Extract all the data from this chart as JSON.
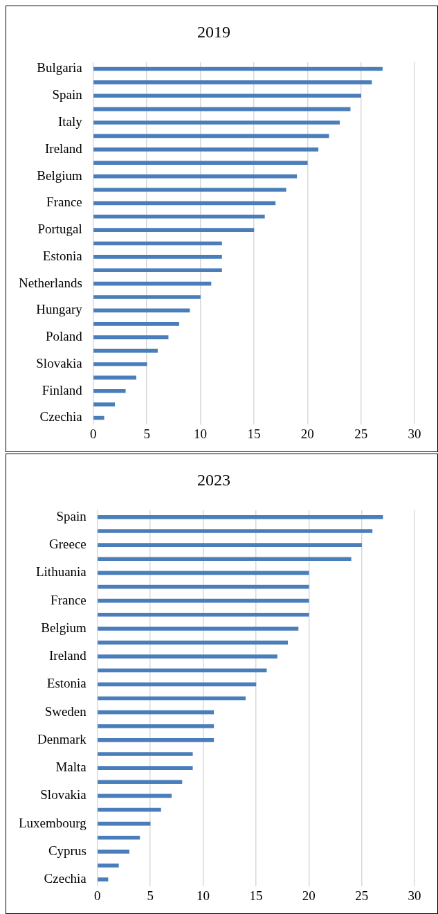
{
  "chart_data": [
    {
      "type": "bar",
      "title": "2019",
      "orientation": "horizontal",
      "categories": [
        "Bulgaria",
        null,
        "Spain",
        null,
        "Italy",
        null,
        "Ireland",
        null,
        "Belgium",
        null,
        "France",
        null,
        "Portugal",
        null,
        "Estonia",
        null,
        "Netherlands",
        null,
        "Hungary",
        null,
        "Poland",
        null,
        "Slovakia",
        null,
        "Finland",
        null,
        "Czechia"
      ],
      "values": [
        27,
        26,
        25,
        24,
        23,
        22,
        21,
        20,
        19,
        18,
        17,
        16,
        15,
        12,
        12,
        12,
        11,
        10,
        9,
        8,
        7,
        6,
        5,
        4,
        3,
        2,
        1
      ],
      "color": "#4a7ebb",
      "xlim": [
        0,
        30
      ],
      "xticks": [
        0,
        5,
        10,
        15,
        20,
        25,
        30
      ],
      "grid": "x",
      "legend": false
    },
    {
      "type": "bar",
      "title": "2023",
      "orientation": "horizontal",
      "categories": [
        "Spain",
        null,
        "Greece",
        null,
        "Lithuania",
        null,
        "France",
        null,
        "Belgium",
        null,
        "Ireland",
        null,
        "Estonia",
        null,
        "Sweden",
        null,
        "Denmark",
        null,
        "Malta",
        null,
        "Slovakia",
        null,
        "Luxembourg",
        null,
        "Cyprus",
        null,
        "Czechia"
      ],
      "values": [
        27,
        26,
        25,
        24,
        20,
        20,
        20,
        20,
        19,
        18,
        17,
        16,
        15,
        14,
        11,
        11,
        11,
        9,
        9,
        8,
        7,
        6,
        5,
        4,
        3,
        2,
        1
      ],
      "color": "#4a7ebb",
      "xlim": [
        0,
        30
      ],
      "xticks": [
        0,
        5,
        10,
        15,
        20,
        25,
        30
      ],
      "grid": "x",
      "legend": false
    }
  ]
}
